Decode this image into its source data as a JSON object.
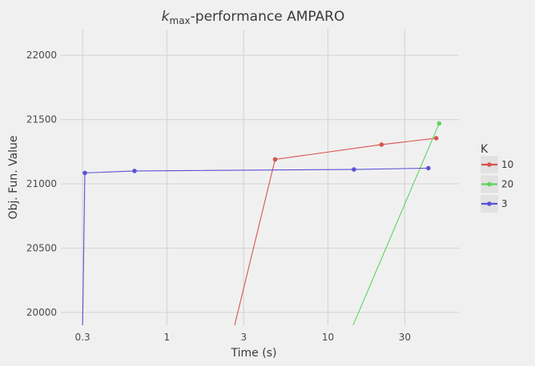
{
  "colors": {
    "background": "#f0f0f0",
    "grid": "#d6d6d6",
    "text": "#3a3a3a",
    "tick_text": "#4a4a4a",
    "legend_key_bg": "#e2e2e2",
    "10": "#d9534f",
    "20": "#5cd65c",
    "3": "#5a52d6"
  },
  "chart_data": {
    "type": "line",
    "title_prefix": "k",
    "title_sub": "max",
    "title_rest": "-performance AMPARO",
    "xlabel": "Time (s)",
    "ylabel": "Obj. Fun. Value",
    "xscale": "log",
    "xlim": [
      0.22,
      65
    ],
    "ylim": [
      19900,
      22200
    ],
    "xticks": [
      0.3,
      1,
      3,
      10,
      30
    ],
    "xtick_labels": [
      "0.3",
      "1",
      "3",
      "10",
      "30"
    ],
    "yticks": [
      20000,
      20500,
      21000,
      21500,
      22000
    ],
    "ytick_labels": [
      "20000",
      "20500",
      "21000",
      "21500",
      "22000"
    ],
    "grid": true,
    "legend": {
      "title": "K",
      "position": "right",
      "entries": [
        "10",
        "20",
        "3"
      ]
    },
    "series": [
      {
        "name": "10",
        "color": "#d9534f",
        "x": [
          2.6,
          4.7,
          21.5,
          47
        ],
        "y": [
          19870,
          21190,
          21305,
          21355
        ],
        "markers": [
          false,
          true,
          true,
          true
        ]
      },
      {
        "name": "20",
        "color": "#5cd65c",
        "x": [
          14,
          49
        ],
        "y": [
          19870,
          21470
        ],
        "markers": [
          false,
          true
        ]
      },
      {
        "name": "3",
        "color": "#5a52d6",
        "x": [
          0.3,
          0.31,
          0.63,
          14.5,
          42
        ],
        "y": [
          19870,
          21085,
          21100,
          21112,
          21122
        ],
        "markers": [
          false,
          true,
          true,
          true,
          true
        ]
      }
    ]
  }
}
